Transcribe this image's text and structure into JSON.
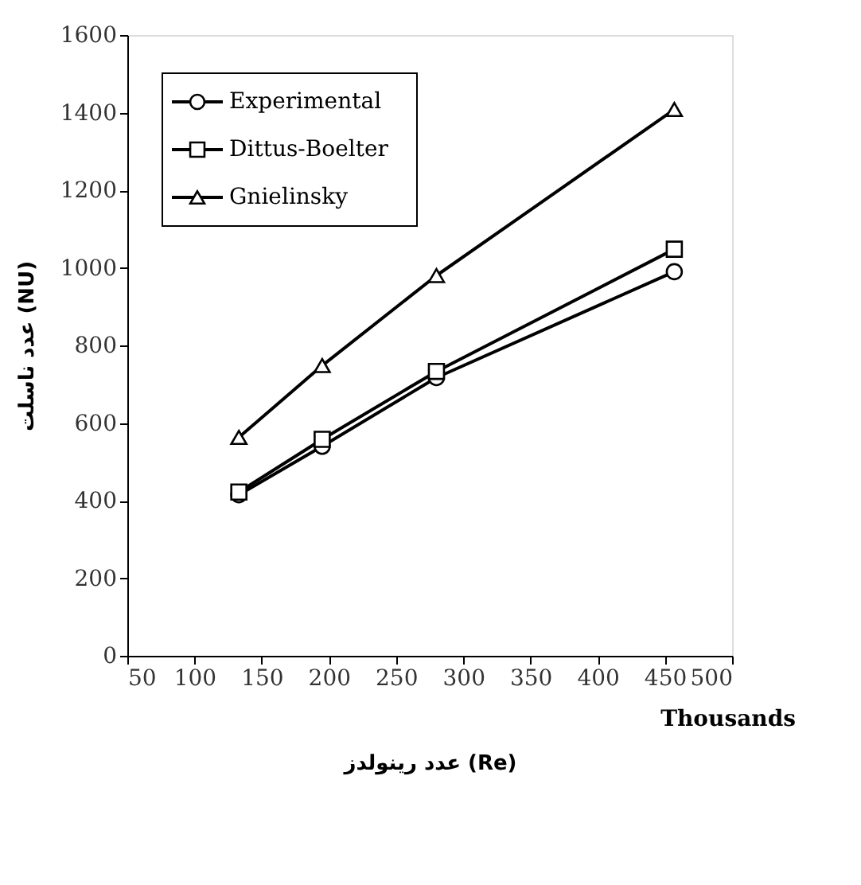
{
  "chart_data": {
    "type": "line",
    "xlabel": "عدد رینولدز (Re)",
    "ylabel": "عدد ناسلت (NU)",
    "annotations": [
      "Thousands"
    ],
    "x": [
      133,
      195,
      280,
      457
    ],
    "series": [
      {
        "name": "Experimental",
        "color": "#000000",
        "marker": "circle",
        "values": [
          415,
          540,
          717,
          990
        ]
      },
      {
        "name": "Dittus-Boelter",
        "color": "#000000",
        "marker": "square",
        "values": [
          422,
          558,
          733,
          1048
        ]
      },
      {
        "name": "Gnielinsky",
        "color": "#000000",
        "marker": "triangle",
        "values": [
          563,
          748,
          980,
          1408
        ]
      }
    ],
    "xlim": [
      50,
      500
    ],
    "xticks": [
      50,
      100,
      150,
      200,
      250,
      300,
      350,
      400,
      450,
      500
    ],
    "ylim": [
      0,
      1600
    ],
    "yticks": [
      0,
      200,
      400,
      600,
      800,
      1000,
      1200,
      1400,
      1600
    ],
    "grid": false,
    "legend": "top left",
    "line_style": "solid"
  }
}
